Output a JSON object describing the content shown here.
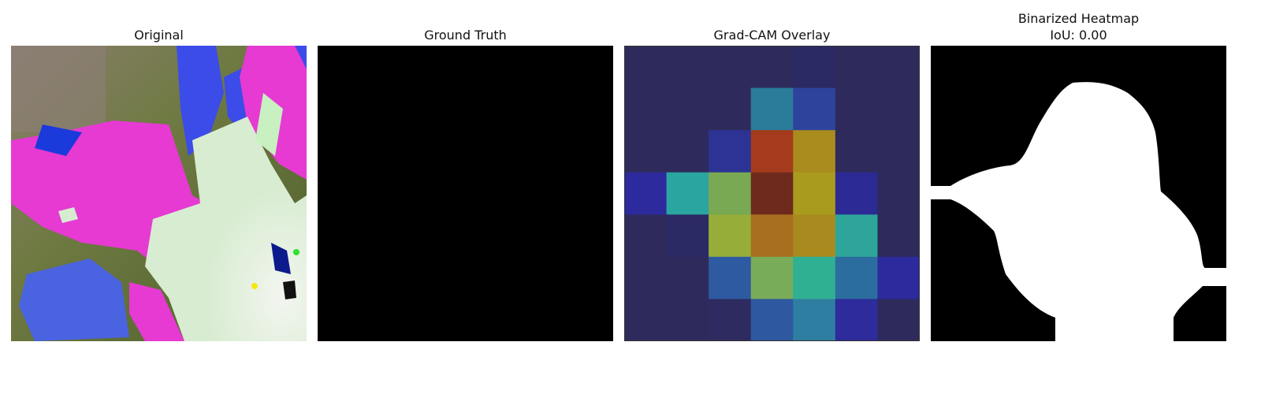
{
  "panels": [
    {
      "title": "Original"
    },
    {
      "title": "Ground Truth"
    },
    {
      "title": "Grad-CAM Overlay"
    },
    {
      "title": "Binarized Heatmap",
      "subtitle": "IoU: 0.00"
    }
  ],
  "gradcam_grid": {
    "rows": 7,
    "cols": 7,
    "colors": [
      [
        "#2e2b5c",
        "#2e2b5c",
        "#2e2b5c",
        "#2e2b5c",
        "#2c2a64",
        "#2e2b5c",
        "#2e2b5c"
      ],
      [
        "#2e2b5c",
        "#2e2b5c",
        "#2e2b5c",
        "#2b7c9a",
        "#2e439c",
        "#2e2b5c",
        "#2e2b5c"
      ],
      [
        "#2e2b5c",
        "#2e2b5c",
        "#2c3394",
        "#a53b1c",
        "#a98b1e",
        "#2e2b5c",
        "#2e2b5c"
      ],
      [
        "#2c2a9c",
        "#2ba5a0",
        "#79a952",
        "#6e2a1c",
        "#a99b1e",
        "#2c2a94",
        "#2e2b5c"
      ],
      [
        "#2e2b5c",
        "#2c2a64",
        "#96ad3a",
        "#a86f1e",
        "#a98a1e",
        "#2ea59a",
        "#2e2b5c"
      ],
      [
        "#2e2b5c",
        "#2e2b5c",
        "#2d5aa0",
        "#79ac58",
        "#2fb092",
        "#2b6d9f",
        "#2c2a9c"
      ],
      [
        "#2e2b5c",
        "#2e2b5c",
        "#2e2b60",
        "#2e58a0",
        "#2e7ea1",
        "#2e2b9c",
        "#2e2b5c"
      ]
    ]
  }
}
